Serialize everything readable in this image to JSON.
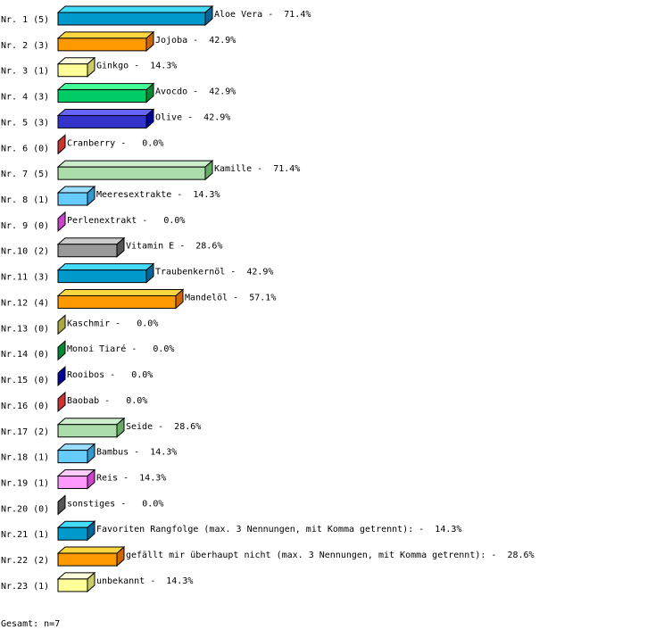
{
  "chart_data": {
    "type": "bar",
    "orientation": "horizontal",
    "style": "3d",
    "xlim": [
      0,
      100
    ],
    "grid": false,
    "categories": [
      "Nr. 1 (5)",
      "Nr. 2 (3)",
      "Nr. 3 (1)",
      "Nr. 4 (3)",
      "Nr. 5 (3)",
      "Nr. 6 (0)",
      "Nr. 7 (5)",
      "Nr. 8 (1)",
      "Nr. 9 (0)",
      "Nr.10 (2)",
      "Nr.11 (3)",
      "Nr.12 (4)",
      "Nr.13 (0)",
      "Nr.14 (0)",
      "Nr.15 (0)",
      "Nr.16 (0)",
      "Nr.17 (2)",
      "Nr.18 (1)",
      "Nr.19 (1)",
      "Nr.20 (0)",
      "Nr.21 (1)",
      "Nr.22 (2)",
      "Nr.23 (1)"
    ],
    "values": [
      71.4,
      42.9,
      14.3,
      42.9,
      42.9,
      0.0,
      71.4,
      14.3,
      0.0,
      28.6,
      42.9,
      57.1,
      0.0,
      0.0,
      0.0,
      0.0,
      28.6,
      14.3,
      14.3,
      0.0,
      14.3,
      28.6,
      14.3
    ],
    "data_labels": [
      "Aloe Vera -  71.4%",
      "Jojoba -  42.9%",
      "Ginkgo -  14.3%",
      "Avocdo -  42.9%",
      "Olive -  42.9%",
      "Cranberry -   0.0%",
      "Kamille -  71.4%",
      "Meeresextrakte -  14.3%",
      "Perlenextrakt -   0.0%",
      "Vitamin E -  28.6%",
      "Traubenkernöl -  42.9%",
      "Mandelöl -  57.1%",
      "Kaschmir -   0.0%",
      "Monoi Tiaré -   0.0%",
      "Rooibos -   0.0%",
      "Baobab -   0.0%",
      "Seide -  28.6%",
      "Bambus -  14.3%",
      "Reis -  14.3%",
      "sonstiges -   0.0%",
      "Favoriten Rangfolge (max. 3 Nennungen, mit Komma getrennt): -  14.3%",
      "gefällt mir überhaupt nicht (max. 3 Nennungen, mit Komma getrennt): -  28.6%",
      "unbekannt -  14.3%"
    ],
    "footer": "Gesamt: n=7",
    "palette": [
      {
        "front": "#0099cc",
        "top": "#44ddff",
        "side": "#006699"
      },
      {
        "front": "#ff9900",
        "top": "#ffd740",
        "side": "#cc6600"
      },
      {
        "front": "#ffff99",
        "top": "#ffffdd",
        "side": "#cccc66"
      },
      {
        "front": "#00cc66",
        "top": "#44ff99",
        "side": "#008833"
      },
      {
        "front": "#3333cc",
        "top": "#6666ff",
        "side": "#000099"
      },
      {
        "front": "#cc3333",
        "top": "#ff6666",
        "side": "#cc3333"
      },
      {
        "front": "#aaddaa",
        "top": "#cceecc",
        "side": "#66aa66"
      },
      {
        "front": "#66ccff",
        "top": "#99ddff",
        "side": "#3399cc"
      },
      {
        "front": "#cc44cc",
        "top": "#ee88ee",
        "side": "#cc44cc"
      },
      {
        "front": "#999999",
        "top": "#cccccc",
        "side": "#555555"
      },
      {
        "front": "#0099cc",
        "top": "#44ddff",
        "side": "#006699"
      },
      {
        "front": "#ff9900",
        "top": "#ffd740",
        "side": "#cc6600"
      },
      {
        "front": "#ffff99",
        "top": "#ffffdd",
        "side": "#aaaa44"
      },
      {
        "front": "#00cc66",
        "top": "#44ff99",
        "side": "#008833"
      },
      {
        "front": "#3333cc",
        "top": "#6666ff",
        "side": "#000099"
      },
      {
        "front": "#cc3333",
        "top": "#ff6666",
        "side": "#cc3333"
      },
      {
        "front": "#aaddaa",
        "top": "#cceecc",
        "side": "#66aa66"
      },
      {
        "front": "#66ccff",
        "top": "#99ddff",
        "side": "#3399cc"
      },
      {
        "front": "#ff99ff",
        "top": "#ffccff",
        "side": "#cc44cc"
      },
      {
        "front": "#555555",
        "top": "#888888",
        "side": "#555555"
      },
      {
        "front": "#0099cc",
        "top": "#44ddff",
        "side": "#006699"
      },
      {
        "front": "#ff9900",
        "top": "#ffd740",
        "side": "#cc6600"
      },
      {
        "front": "#ffff99",
        "top": "#ffffdd",
        "side": "#cccc66"
      }
    ]
  }
}
